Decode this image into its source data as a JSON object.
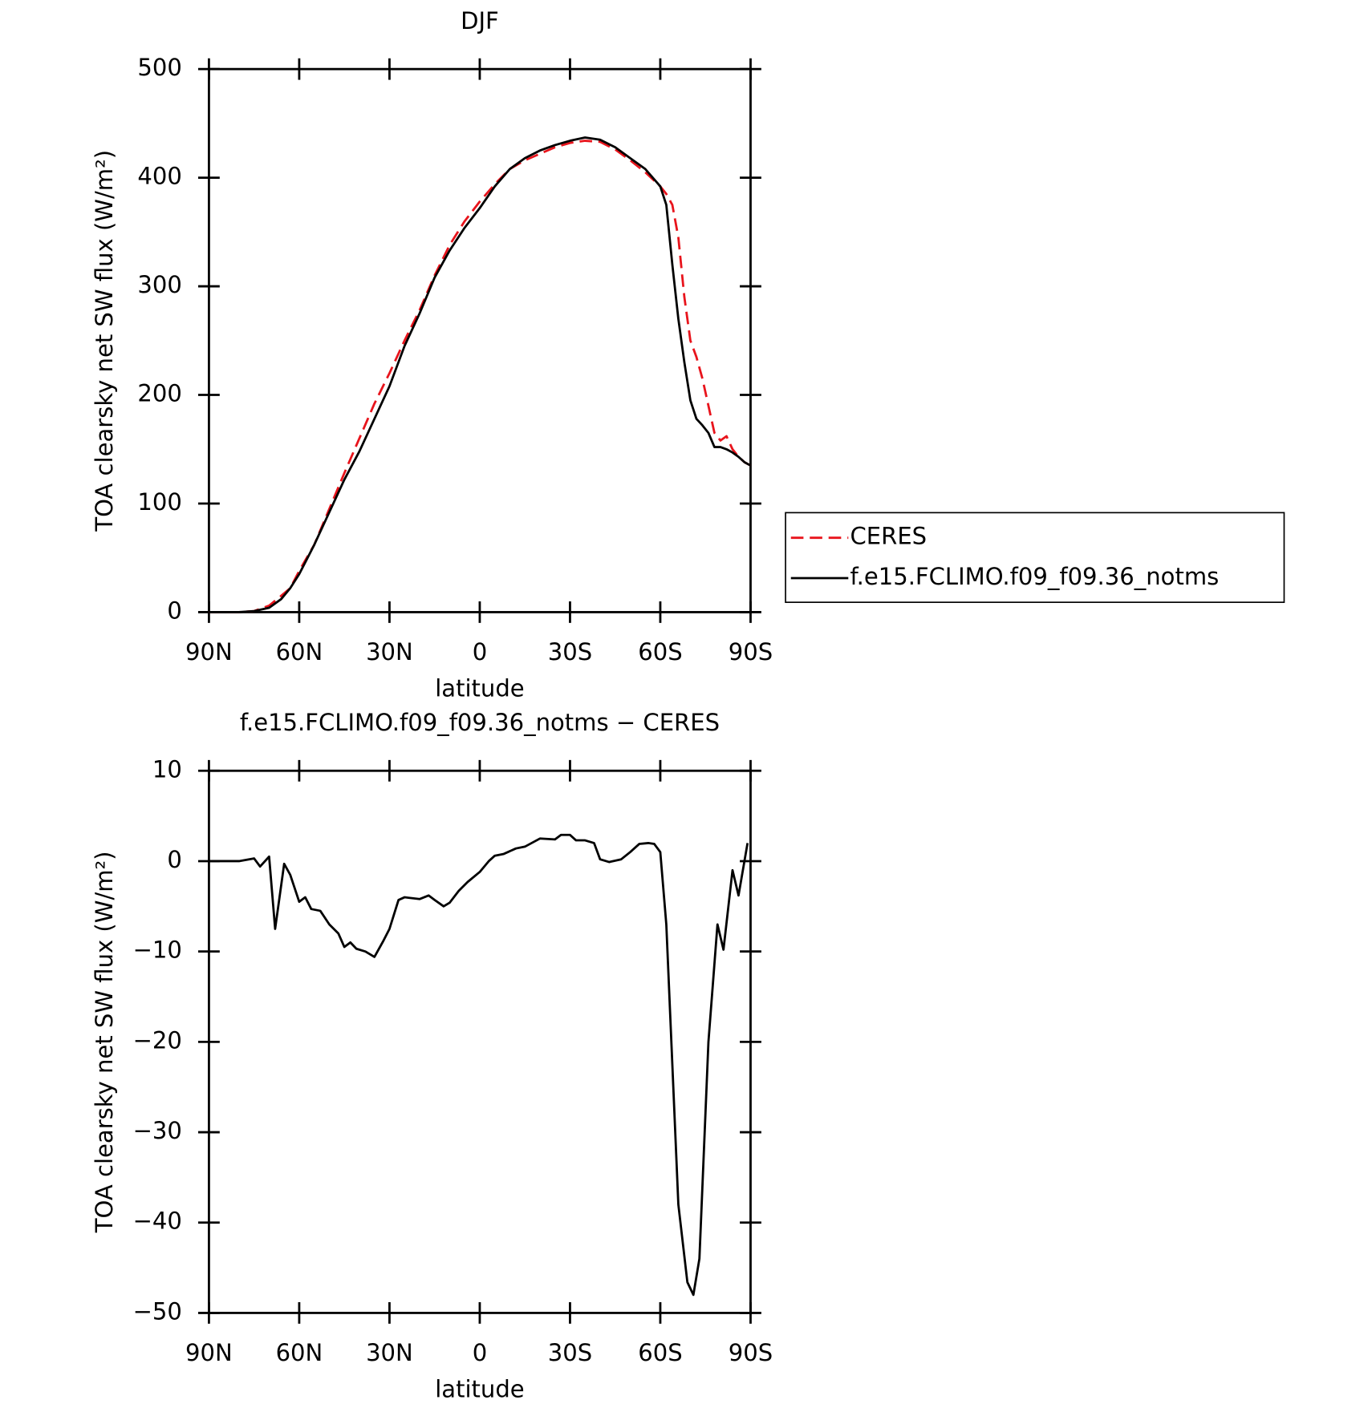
{
  "chart_data": [
    {
      "type": "line",
      "title": "DJF",
      "xlabel": "latitude",
      "ylabel": "TOA clearsky net SW flux (W/m²)",
      "x": [
        90,
        85,
        80,
        75,
        70,
        66,
        63,
        60,
        55,
        50,
        45,
        40,
        35,
        30,
        25,
        20,
        15,
        10,
        5,
        0,
        -5,
        -10,
        -15,
        -20,
        -25,
        -30,
        -35,
        -40,
        -45,
        -50,
        -55,
        -60,
        -62,
        -64,
        -66,
        -68,
        -70,
        -72,
        -74,
        -76,
        -78,
        -80,
        -82,
        -84,
        -86,
        -88,
        -90
      ],
      "xlim": [
        90,
        -90
      ],
      "xticks": [
        {
          "value": 90,
          "label": "90N"
        },
        {
          "value": 60,
          "label": "60N"
        },
        {
          "value": 30,
          "label": "30N"
        },
        0,
        {
          "value": -30,
          "label": "30S"
        },
        {
          "value": -60,
          "label": "60S"
        },
        {
          "value": -90,
          "label": "90S"
        }
      ],
      "ylim": [
        0,
        500
      ],
      "yticks": [
        0,
        100,
        200,
        300,
        400,
        500
      ],
      "series": [
        {
          "name": "CERES",
          "color": "#e8141c",
          "style": "dashed",
          "values": [
            0,
            0,
            0,
            1,
            6,
            15,
            22,
            38,
            62,
            95,
            128,
            160,
            192,
            220,
            250,
            278,
            310,
            338,
            360,
            378,
            394,
            408,
            416,
            422,
            428,
            432,
            434,
            433,
            426,
            416,
            405,
            392,
            385,
            375,
            345,
            290,
            250,
            235,
            215,
            190,
            165,
            158,
            162,
            150,
            143,
            138,
            135
          ]
        },
        {
          "name": "f.e15.FCLIMO.f09_f09.36_notms",
          "color": "#000000",
          "style": "solid",
          "values": [
            0,
            0,
            0,
            1,
            4,
            12,
            22,
            35,
            62,
            92,
            122,
            148,
            178,
            208,
            245,
            275,
            308,
            333,
            354,
            372,
            392,
            408,
            418,
            425,
            430,
            434,
            437,
            435,
            428,
            418,
            408,
            392,
            375,
            320,
            270,
            230,
            195,
            178,
            172,
            165,
            152,
            152,
            150,
            147,
            143,
            138,
            135
          ]
        }
      ]
    },
    {
      "type": "line",
      "title": "f.e15.FCLIMO.f09_f09.36_notms − CERES",
      "xlabel": "latitude",
      "ylabel": "TOA clearsky net SW flux (W/m²)",
      "x": [
        90,
        80,
        75,
        73,
        70,
        68,
        65,
        63,
        60,
        58,
        56,
        53,
        50,
        47,
        45,
        43,
        41,
        38,
        35,
        32,
        30,
        27,
        25,
        20,
        17,
        15,
        12,
        10,
        7,
        4,
        0,
        -3,
        -5,
        -8,
        -12,
        -15,
        -20,
        -25,
        -27,
        -30,
        -32,
        -35,
        -38,
        -40,
        -43,
        -47,
        -50,
        -53,
        -56,
        -58,
        -60,
        -62,
        -66,
        -69,
        -71,
        -73,
        -76,
        -79,
        -81,
        -84,
        -86,
        -89
      ],
      "xlim": [
        90,
        -90
      ],
      "xticks": [
        {
          "value": 90,
          "label": "90N"
        },
        {
          "value": 60,
          "label": "60N"
        },
        {
          "value": 30,
          "label": "30N"
        },
        0,
        {
          "value": -30,
          "label": "30S"
        },
        {
          "value": -60,
          "label": "60S"
        },
        {
          "value": -90,
          "label": "90S"
        }
      ],
      "ylim": [
        -50,
        10
      ],
      "yticks": [
        -50,
        -40,
        -30,
        -20,
        -10,
        0,
        10
      ],
      "series": [
        {
          "color": "#000000",
          "style": "solid",
          "values": [
            0,
            0,
            0.3,
            -0.6,
            0.5,
            -7.5,
            -0.3,
            -1.5,
            -4.5,
            -4,
            -5.3,
            -5.5,
            -7,
            -8,
            -9.5,
            -9,
            -9.7,
            -10,
            -10.6,
            -8.8,
            -7.5,
            -4.3,
            -4,
            -4.2,
            -3.8,
            -4.3,
            -5,
            -4.6,
            -3.3,
            -2.3,
            -1.2,
            0,
            0.6,
            0.8,
            1.4,
            1.6,
            2.5,
            2.4,
            2.9,
            2.9,
            2.3,
            2.3,
            2,
            0.2,
            -0.1,
            0.2,
            1,
            1.9,
            2,
            1.9,
            1,
            -7,
            -38,
            -46.6,
            -48,
            -44,
            -20,
            -7,
            -9.8,
            -1,
            -3.8,
            2
          ]
        }
      ]
    }
  ]
}
